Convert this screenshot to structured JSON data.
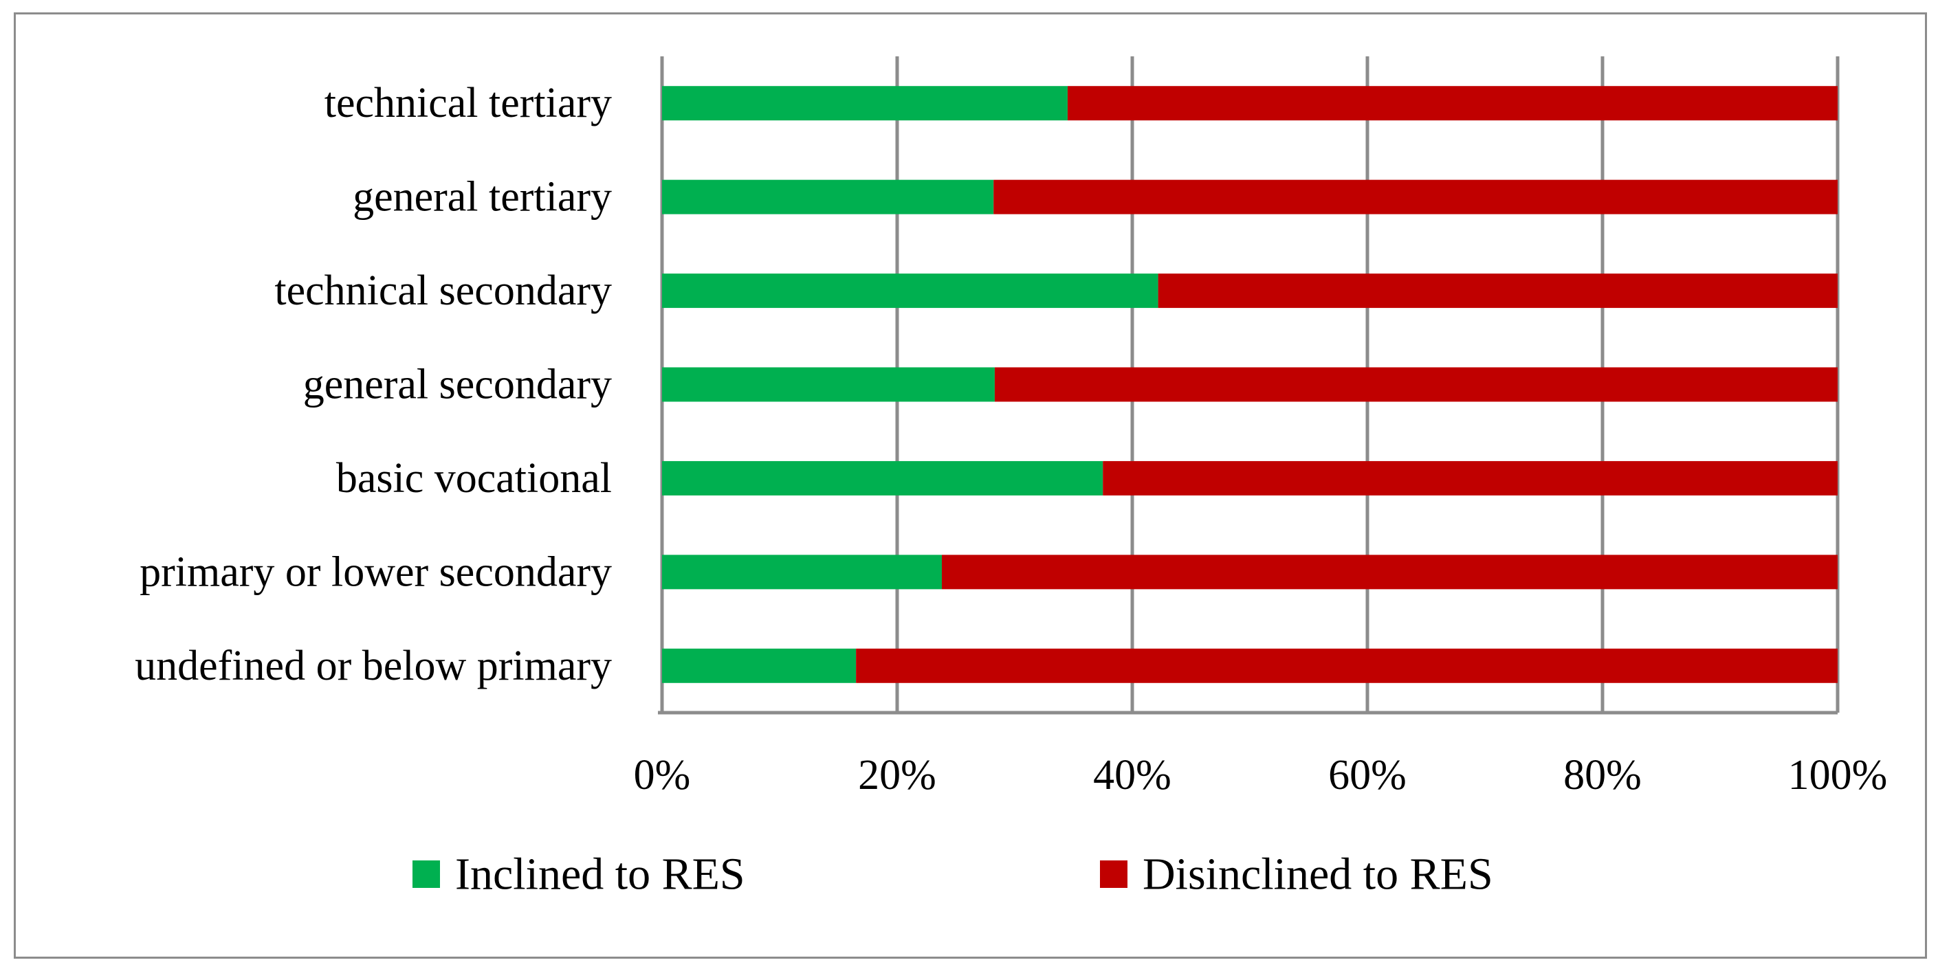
{
  "chart_data": {
    "type": "bar",
    "orientation": "horizontal",
    "stacked": "percent",
    "title": "",
    "xlabel": "",
    "ylabel": "",
    "xlim": [
      0,
      100
    ],
    "x_ticks": [
      0,
      20,
      40,
      60,
      80,
      100
    ],
    "x_tick_labels": [
      "0%",
      "20%",
      "40%",
      "60%",
      "80%",
      "100%"
    ],
    "grid": "vertical",
    "legend_position": "bottom",
    "categories": [
      "technical tertiary",
      "general tertiary",
      "technical secondary",
      "general secondary",
      "basic vocational",
      "primary or lower secondary",
      "undefined or below primary"
    ],
    "series": [
      {
        "name": "Inclined to RES",
        "color": "#00b050",
        "values": [
          34.5,
          28.2,
          42.2,
          28.3,
          37.5,
          23.8,
          16.5
        ]
      },
      {
        "name": "Disinclined to RES",
        "color": "#c00000",
        "values": [
          65.5,
          71.8,
          57.8,
          71.7,
          62.5,
          76.2,
          83.5
        ]
      }
    ]
  }
}
